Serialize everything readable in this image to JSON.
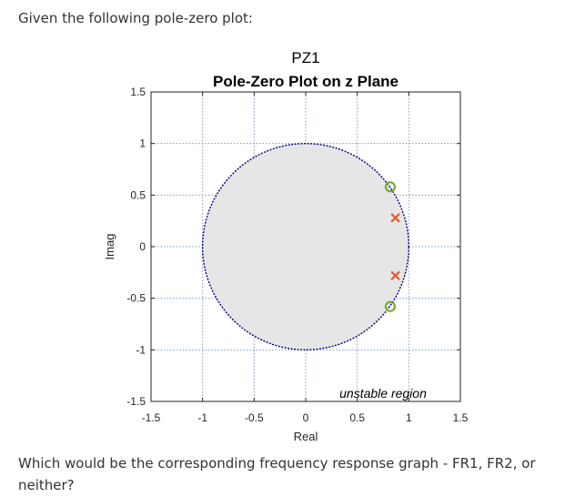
{
  "question": {
    "intro": "Given the following pole-zero plot:",
    "ask": "Which would be the corresponding frequency response graph - FR1, FR2, or neither?"
  },
  "chart_data": {
    "type": "scatter",
    "title": "PZ1",
    "subtitle": "Pole-Zero Plot on z Plane",
    "xlabel": "Real",
    "ylabel": "Imag",
    "xlim": [
      -1.5,
      1.5
    ],
    "ylim": [
      -1.5,
      1.5
    ],
    "xticks": [
      -1.5,
      -1,
      -0.5,
      0,
      0.5,
      1,
      1.5
    ],
    "yticks": [
      -1.5,
      -1,
      -0.5,
      0,
      0.5,
      1,
      1.5
    ],
    "xtick_labels": [
      "-1.5",
      "-1",
      "-0.5",
      "0",
      "0.5",
      "1",
      "1.5"
    ],
    "ytick_labels": [
      "-1.5",
      "-1",
      "-0.5",
      "0",
      "0.5",
      "1",
      "1.5"
    ],
    "grid": true,
    "unit_circle": {
      "radius": 1,
      "fill": "#e6e6e6",
      "stroke": "#000080"
    },
    "poles": [
      {
        "x": 0.87,
        "y": 0.28
      },
      {
        "x": 0.87,
        "y": -0.28
      }
    ],
    "zeros": [
      {
        "x": 0.82,
        "y": 0.58
      },
      {
        "x": 0.82,
        "y": -0.58
      }
    ],
    "annotation": "unstable region",
    "colors": {
      "pole": "#e4572e",
      "zero": "#77ac30",
      "grid": "#7a9bd0"
    }
  }
}
